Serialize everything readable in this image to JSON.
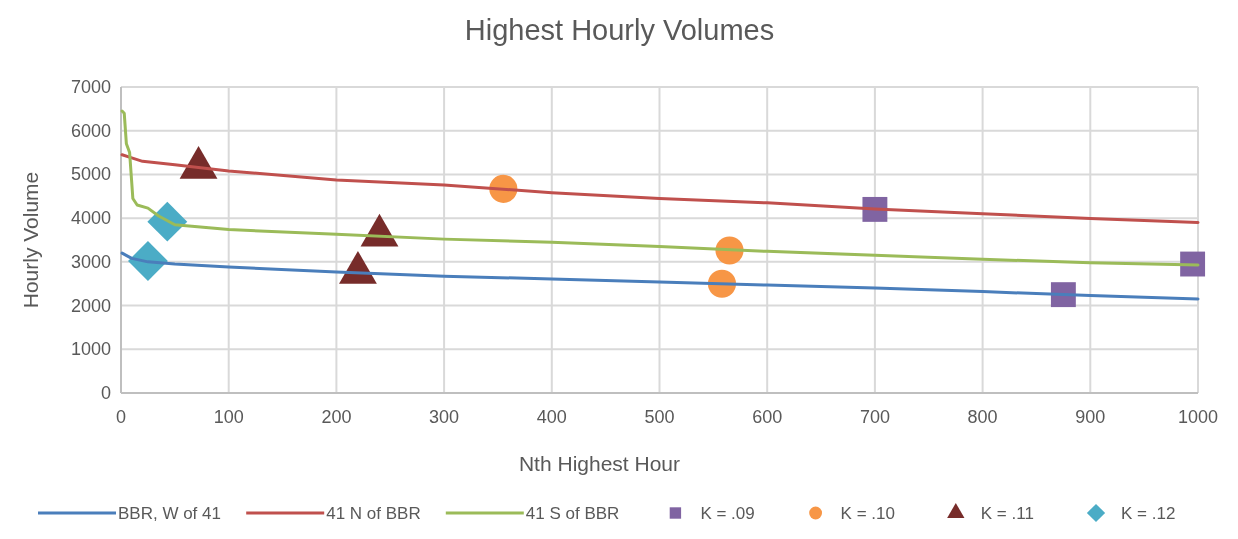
{
  "chart_data": {
    "type": "line",
    "title": "Highest Hourly Volumes",
    "xlabel": "Nth Highest Hour",
    "ylabel": "Hourly Volume",
    "xlim": [
      0,
      1000
    ],
    "xticks": [
      0,
      100,
      200,
      300,
      400,
      500,
      600,
      700,
      800,
      900,
      1000
    ],
    "ylim": [
      0,
      7000
    ],
    "yticks": [
      0,
      1000,
      2000,
      3000,
      4000,
      5000,
      6000,
      7000
    ],
    "grid": true,
    "legend": "bottom",
    "series": [
      {
        "name": "BBR, W of 41",
        "color": "#4a7ebb",
        "marker": "none",
        "x": [
          1,
          10,
          25,
          50,
          100,
          200,
          300,
          400,
          500,
          600,
          700,
          800,
          900,
          1000
        ],
        "values": [
          3200,
          3080,
          3000,
          2950,
          2880,
          2770,
          2670,
          2610,
          2540,
          2470,
          2400,
          2320,
          2230,
          2150
        ]
      },
      {
        "name": "41 N of BBR",
        "color": "#c0504d",
        "marker": "none",
        "x": [
          1,
          10,
          20,
          50,
          100,
          200,
          300,
          400,
          500,
          600,
          700,
          800,
          900,
          1000
        ],
        "values": [
          5450,
          5380,
          5300,
          5220,
          5080,
          4870,
          4760,
          4580,
          4450,
          4350,
          4210,
          4100,
          3990,
          3900
        ]
      },
      {
        "name": "41 S of BBR",
        "color": "#9bbb59",
        "marker": "none",
        "x": [
          1,
          3,
          5,
          8,
          10,
          11,
          15,
          25,
          35,
          50,
          100,
          200,
          300,
          400,
          500,
          600,
          700,
          800,
          900,
          1000
        ],
        "values": [
          6450,
          6400,
          5700,
          5500,
          4800,
          4450,
          4300,
          4230,
          4050,
          3850,
          3740,
          3630,
          3520,
          3450,
          3350,
          3240,
          3150,
          3060,
          2980,
          2930
        ]
      },
      {
        "name": "K = .09",
        "color": "#8064a2",
        "type": "scatter",
        "marker": "square",
        "x": [
          700,
          875,
          995
        ],
        "values": [
          4200,
          2250,
          2950
        ]
      },
      {
        "name": "K = .10",
        "color": "#f79646",
        "type": "scatter",
        "marker": "circle",
        "x": [
          355,
          565,
          558
        ],
        "values": [
          4670,
          3260,
          2500
        ]
      },
      {
        "name": "K = .11",
        "color": "#772c2a",
        "type": "scatter",
        "marker": "triangle",
        "x": [
          72,
          240,
          220
        ],
        "values": [
          5150,
          3600,
          2750
        ]
      },
      {
        "name": "K = .12",
        "color": "#4bacc6",
        "type": "scatter",
        "marker": "diamond",
        "x": [
          43,
          25
        ],
        "values": [
          3920,
          3020
        ]
      }
    ]
  }
}
